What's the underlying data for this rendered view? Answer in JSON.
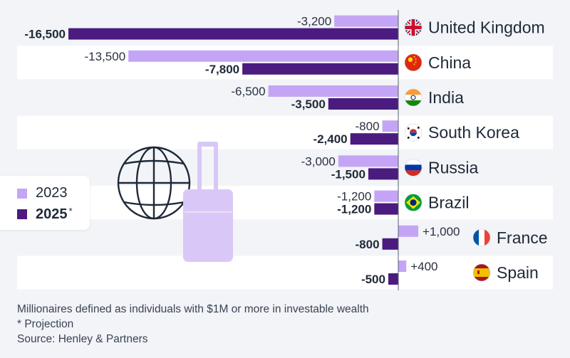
{
  "chart_data": {
    "type": "bar",
    "orientation": "horizontal",
    "categories": [
      "United Kingdom",
      "China",
      "India",
      "South Korea",
      "Russia",
      "Brazil",
      "France",
      "Spain"
    ],
    "series": [
      {
        "name": "2023",
        "values": [
          -3200,
          -13500,
          -6500,
          -800,
          -3000,
          -1200,
          1000,
          400
        ],
        "labels": [
          "-3,200",
          "-13,500",
          "-6,500",
          "-800",
          "-3,000",
          "-1,200",
          "+1,000",
          "+400"
        ]
      },
      {
        "name": "2025",
        "values": [
          -16500,
          -7800,
          -3500,
          -2400,
          -1500,
          -1200,
          -800,
          -500
        ],
        "labels": [
          "-16,500",
          "-7,800",
          "-3,500",
          "-2,400",
          "-1,500",
          "-1,200",
          "-800",
          "-500"
        ]
      }
    ],
    "flags": [
      "uk-flag-icon",
      "china-flag-icon",
      "india-flag-icon",
      "south-korea-flag-icon",
      "russia-flag-icon",
      "brazil-flag-icon",
      "france-flag-icon",
      "spain-flag-icon"
    ],
    "colors": {
      "2023": "#c4a5f5",
      "2025": "#4b1b7f"
    }
  },
  "legend": {
    "item_2023": "2023",
    "item_2025": "2025",
    "projection_mark": "*"
  },
  "footnotes": {
    "definition": "Millionaires defined as individuals with $1M or more in investable wealth",
    "projection": "* Projection",
    "source": "Source: Henley & Partners"
  },
  "decorations": {
    "globe": "globe-icon",
    "luggage": "suitcase-icon"
  }
}
